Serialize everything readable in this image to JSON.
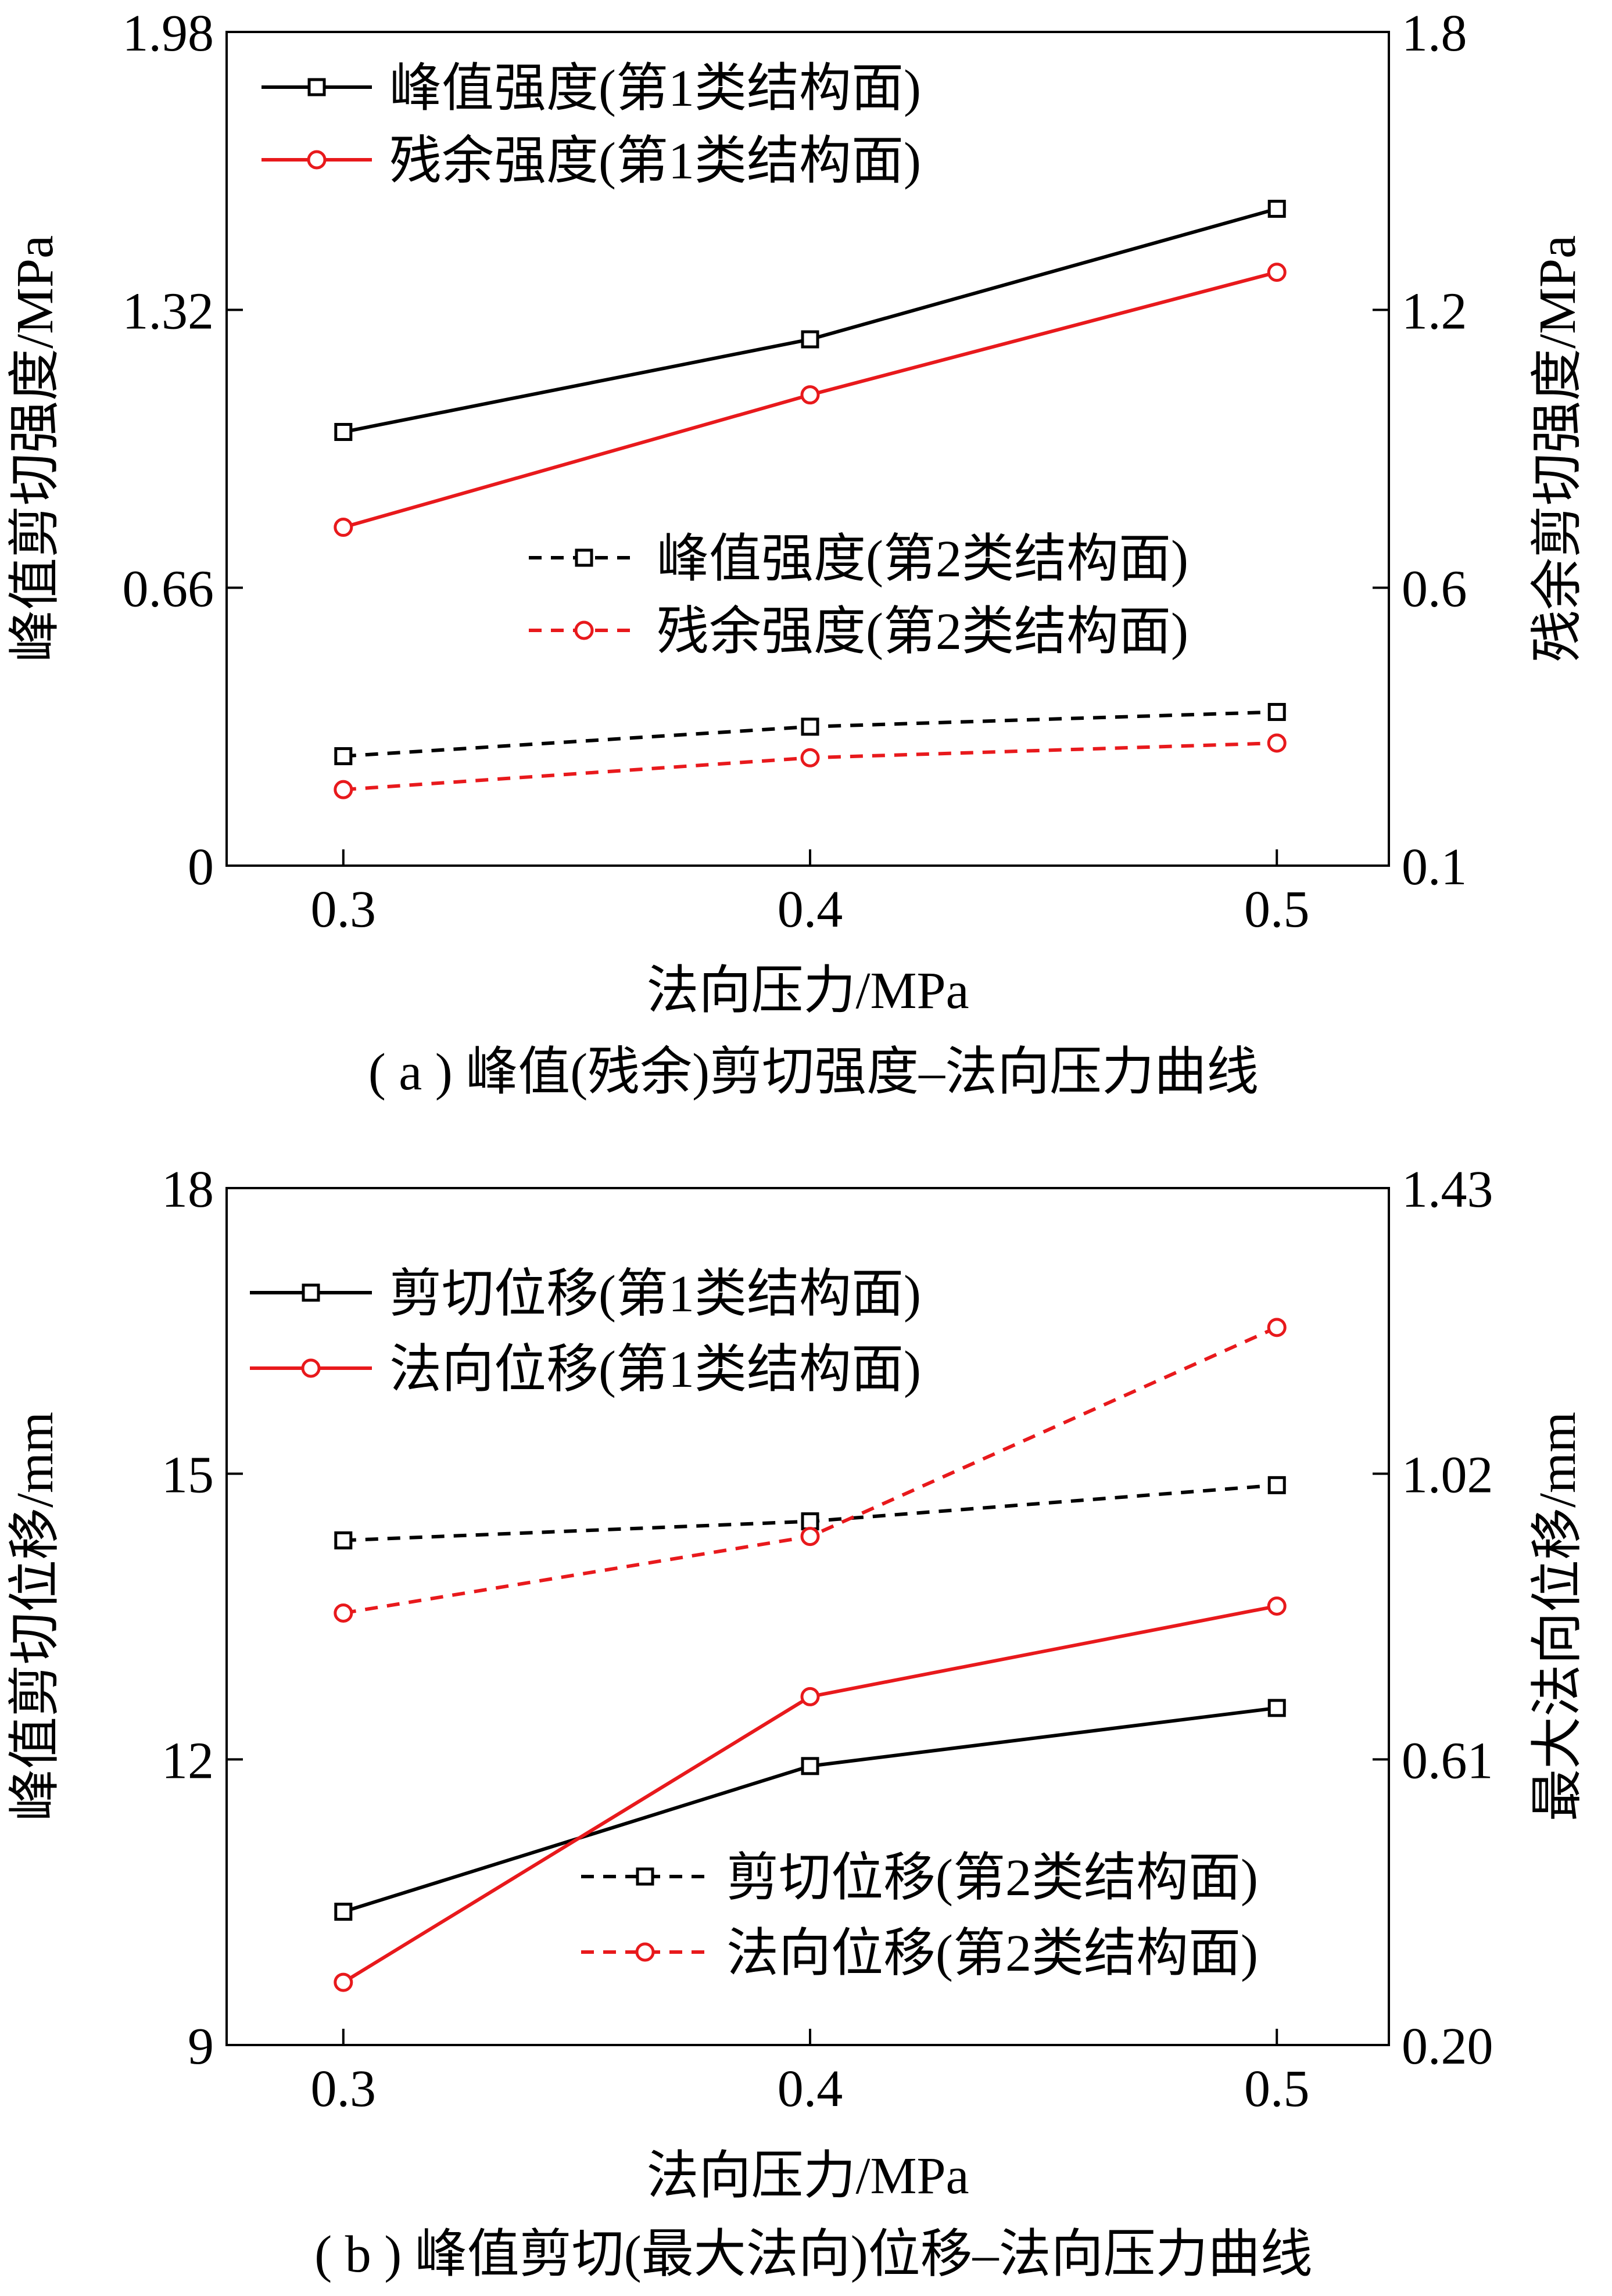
{
  "chart_data": [
    {
      "id": "a",
      "type": "line",
      "caption": "( a ) 峰值(残余)剪切强度–法向压力曲线",
      "xlabel": "法向压力/MPa",
      "ylabel_left": "峰值剪切强度/MPa",
      "ylabel_right": "残余剪切强度/MPa",
      "x": [
        0.3,
        0.4,
        0.5
      ],
      "xticks": [
        "0.3",
        "0.4",
        "0.5"
      ],
      "xlim": [
        0.275,
        0.524
      ],
      "ylim_left": [
        0,
        1.98
      ],
      "yticks_left": [
        "0",
        "0.66",
        "1.32",
        "1.98"
      ],
      "ylim_right": [
        0.1,
        1.8
      ],
      "yticks_right": [
        "0.1",
        "0.6",
        "1.2",
        "1.8"
      ],
      "series": [
        {
          "name": "峰值强度(第1类结构面)",
          "axis": "left",
          "color": "#000000",
          "marker": "square",
          "dash": "solid",
          "values": [
            1.03,
            1.25,
            1.56
          ]
        },
        {
          "name": "残余强度(第1类结构面)",
          "axis": "right",
          "color": "#e8191c",
          "marker": "circle",
          "dash": "solid",
          "values": [
            0.79,
            1.06,
            1.31
          ]
        },
        {
          "name": "峰值强度(第2类结构面)",
          "axis": "left",
          "color": "#000000",
          "marker": "square",
          "dash": "dashed",
          "values": [
            0.26,
            0.33,
            0.365
          ]
        },
        {
          "name": "残余强度(第2类结构面)",
          "axis": "right",
          "color": "#e8191c",
          "marker": "circle",
          "dash": "dashed",
          "values": [
            0.255,
            0.32,
            0.35
          ]
        }
      ],
      "legends": [
        {
          "items": [
            0,
            1
          ],
          "placement": "top-left"
        },
        {
          "items": [
            2,
            3
          ],
          "placement": "center-right"
        }
      ]
    },
    {
      "id": "b",
      "type": "line",
      "caption": "( b ) 峰值剪切(最大法向)位移–法向压力曲线",
      "xlabel": "法向压力/MPa",
      "ylabel_left": "峰值剪切位移/mm",
      "ylabel_right": "最大法向位移/mm",
      "x": [
        0.3,
        0.4,
        0.5
      ],
      "xticks": [
        "0.3",
        "0.4",
        "0.5"
      ],
      "xlim": [
        0.275,
        0.524
      ],
      "ylim_left": [
        9,
        18
      ],
      "yticks_left": [
        "9",
        "12",
        "15",
        "18"
      ],
      "ylim_right": [
        0.2,
        1.43
      ],
      "yticks_right": [
        "0.20",
        "0.61",
        "1.02",
        "1.43"
      ],
      "series": [
        {
          "name": "剪切位移(第1类结构面)",
          "axis": "left",
          "color": "#000000",
          "marker": "square",
          "dash": "solid",
          "values": [
            10.4,
            11.93,
            12.54
          ]
        },
        {
          "name": "法向位移(第1类结构面)",
          "axis": "right",
          "color": "#e8191c",
          "marker": "circle",
          "dash": "solid",
          "values": [
            0.29,
            0.7,
            0.83
          ]
        },
        {
          "name": "剪切位移(第2类结构面)",
          "axis": "left",
          "color": "#000000",
          "marker": "square",
          "dash": "dashed",
          "values": [
            14.3,
            14.5,
            14.88
          ]
        },
        {
          "name": "法向位移(第2类结构面)",
          "axis": "right",
          "color": "#e8191c",
          "marker": "circle",
          "dash": "dashed",
          "values": [
            0.82,
            0.93,
            1.23
          ]
        }
      ],
      "legends": [
        {
          "items": [
            0,
            1
          ],
          "placement": "top-left"
        },
        {
          "items": [
            2,
            3
          ],
          "placement": "bottom-right"
        }
      ]
    }
  ]
}
